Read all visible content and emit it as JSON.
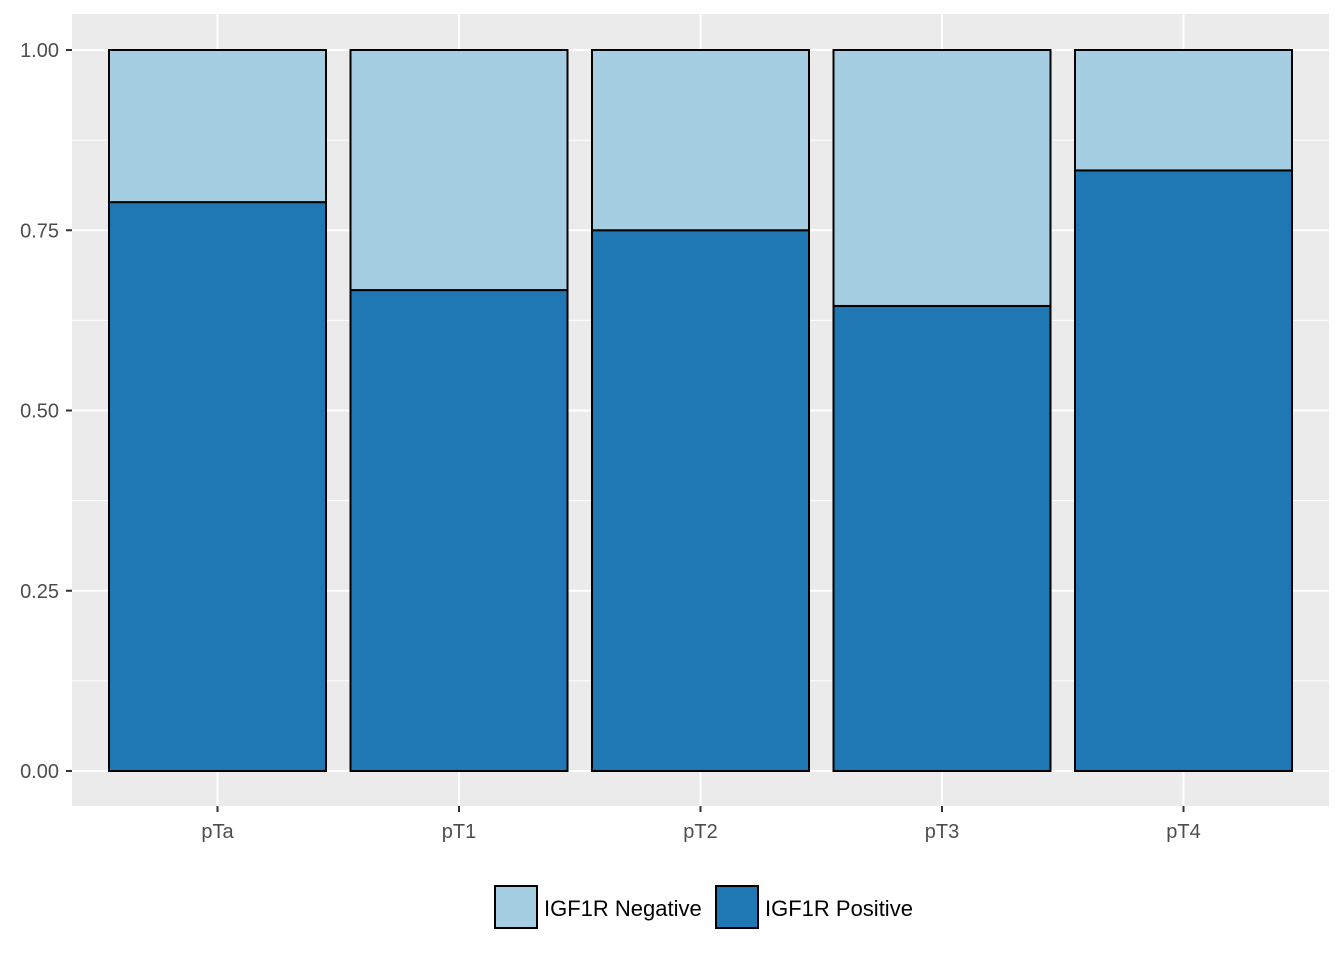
{
  "chart_data": {
    "type": "bar",
    "stacked": true,
    "categories": [
      "pTa",
      "pT1",
      "pT2",
      "pT3",
      "pT4"
    ],
    "series": [
      {
        "name": "IGF1R Positive",
        "color": "#1f78b4",
        "values": [
          0.789,
          0.667,
          0.75,
          0.645,
          0.833
        ]
      },
      {
        "name": "IGF1R Negative",
        "color": "#a6cee3",
        "values": [
          0.211,
          0.333,
          0.25,
          0.355,
          0.167
        ]
      }
    ],
    "yticks": [
      "0.00",
      "0.25",
      "0.50",
      "0.75",
      "1.00"
    ],
    "ylim": [
      0,
      1
    ],
    "title": "",
    "xlabel": "",
    "ylabel": "",
    "grid": true,
    "legend_position": "bottom",
    "legend": [
      {
        "label": "IGF1R Negative",
        "color": "#a6cee3"
      },
      {
        "label": "IGF1R Positive",
        "color": "#1f78b4"
      }
    ],
    "panel_background": "#ebebeb"
  }
}
